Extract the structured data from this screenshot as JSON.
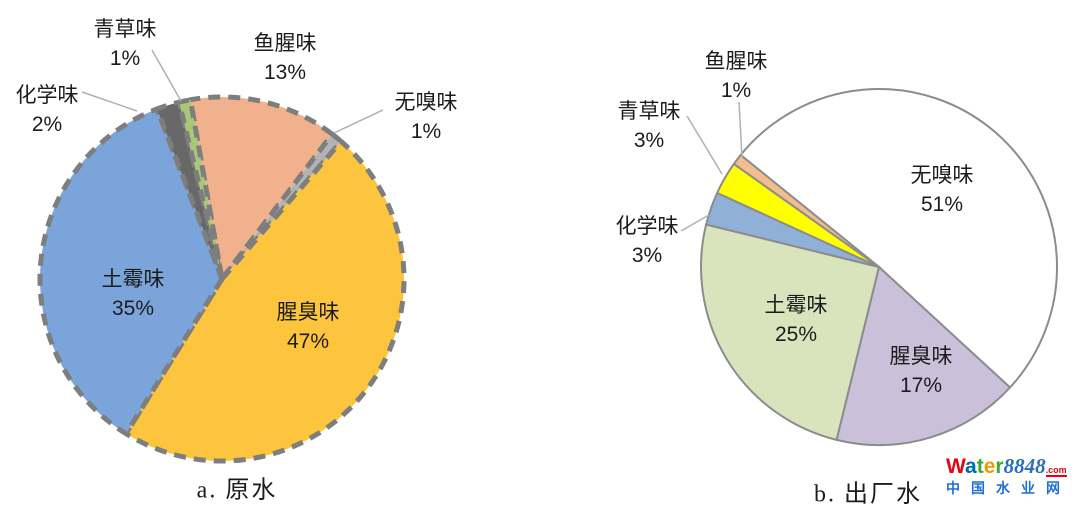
{
  "chart_data": [
    {
      "type": "pie",
      "key": "raw-water",
      "caption": "a. 原水",
      "unit": "%",
      "legend": "none",
      "labels_on_chart": true,
      "start_angle_deg": 350,
      "border": {
        "style": "dashed",
        "color": "#7e7e7e",
        "width": 5
      },
      "slices": [
        {
          "key": "fishy",
          "label": "鱼腥味",
          "value": 13,
          "pct_text": "13%",
          "color": "#f1b18c",
          "label_placement": "outside"
        },
        {
          "key": "odorless",
          "label": "无嗅味",
          "value": 1,
          "pct_text": "1%",
          "color": "#b3b3b3",
          "label_placement": "outside"
        },
        {
          "key": "stinky",
          "label": "腥臭味",
          "value": 47,
          "pct_text": "47%",
          "color": "#fcc53d",
          "label_placement": "inside"
        },
        {
          "key": "musty",
          "label": "土霉味",
          "value": 35,
          "pct_text": "35%",
          "color": "#7ba4da",
          "label_placement": "inside"
        },
        {
          "key": "chemical",
          "label": "化学味",
          "value": 2,
          "pct_text": "2%",
          "color": "#686868",
          "label_placement": "outside"
        },
        {
          "key": "grassy",
          "label": "青草味",
          "value": 1,
          "pct_text": "1%",
          "color": "#a8c878",
          "label_placement": "outside"
        }
      ]
    },
    {
      "type": "pie",
      "key": "finished-water",
      "caption": "b. 出厂水",
      "unit": "%",
      "legend": "none",
      "labels_on_chart": true,
      "start_angle_deg": 309,
      "border": {
        "style": "solid",
        "color": "#8c8c8c",
        "width": 2
      },
      "slices": [
        {
          "key": "odorless",
          "label": "无嗅味",
          "value": 51,
          "pct_text": "51%",
          "color": "#ffffff",
          "label_placement": "inside"
        },
        {
          "key": "stinky",
          "label": "腥臭味",
          "value": 17,
          "pct_text": "17%",
          "color": "#cbc0da",
          "label_placement": "inside"
        },
        {
          "key": "musty",
          "label": "土霉味",
          "value": 25,
          "pct_text": "25%",
          "color": "#d9e4bd",
          "label_placement": "inside"
        },
        {
          "key": "chemical",
          "label": "化学味",
          "value": 3,
          "pct_text": "3%",
          "color": "#90b0d8",
          "label_placement": "outside"
        },
        {
          "key": "grassy",
          "label": "青草味",
          "value": 3,
          "pct_text": "3%",
          "color": "#ffff00",
          "label_placement": "outside"
        },
        {
          "key": "fishy",
          "label": "鱼腥味",
          "value": 1,
          "pct_text": "1%",
          "color": "#f4bd90",
          "label_placement": "outside"
        }
      ]
    }
  ],
  "watermark": {
    "brand_letters": [
      {
        "ch": "W",
        "color": "#e60012"
      },
      {
        "ch": "a",
        "color": "#0068b7"
      },
      {
        "ch": "t",
        "color": "#3aaa35"
      },
      {
        "ch": "e",
        "color": "#f39800"
      },
      {
        "ch": "r",
        "color": "#3aaa35"
      }
    ],
    "number": "8848",
    "number_color": "#2a6dbf",
    "tld": ".com",
    "subtitle": "中国水业网",
    "subtitle_color": "#1f6fd0"
  }
}
